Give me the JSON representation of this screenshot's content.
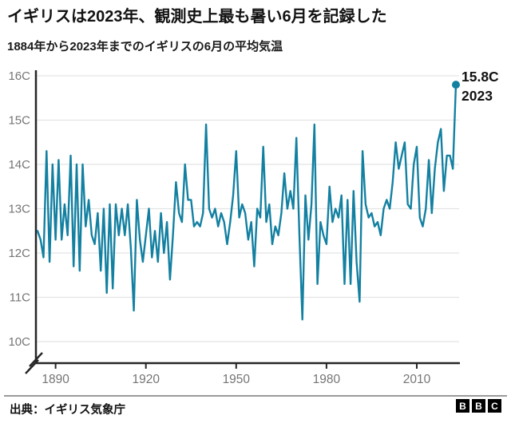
{
  "header": {
    "title": "イギリスは2023年、観測史上最も暑い6月を記録した",
    "subtitle": "1884年から2023年までのイギリスの6月の平均気温"
  },
  "chart_data": {
    "type": "line",
    "title": "イギリスは2023年、観測史上最も暑い6月を記録した",
    "subtitle": "1884年から2023年までのイギリスの6月の平均気温",
    "unit": "C",
    "grid": true,
    "axis_break": true,
    "ylim": [
      10,
      16
    ],
    "xlim": [
      1884,
      2023
    ],
    "ytick_values": [
      16,
      15,
      14,
      13,
      12,
      11,
      10
    ],
    "ytick_labels": [
      "16C",
      "15C",
      "14C",
      "13C",
      "12C",
      "11C",
      "10C"
    ],
    "xtick_values": [
      1890,
      1920,
      1950,
      1980,
      2010
    ],
    "xtick_labels": [
      "1890",
      "1920",
      "1950",
      "1980",
      "2010"
    ],
    "line_color": "#1380A1",
    "years": [
      1884,
      1885,
      1886,
      1887,
      1888,
      1889,
      1890,
      1891,
      1892,
      1893,
      1894,
      1895,
      1896,
      1897,
      1898,
      1899,
      1900,
      1901,
      1902,
      1903,
      1904,
      1905,
      1906,
      1907,
      1908,
      1909,
      1910,
      1911,
      1912,
      1913,
      1914,
      1915,
      1916,
      1917,
      1918,
      1919,
      1920,
      1921,
      1922,
      1923,
      1924,
      1925,
      1926,
      1927,
      1928,
      1929,
      1930,
      1931,
      1932,
      1933,
      1934,
      1935,
      1936,
      1937,
      1938,
      1939,
      1940,
      1941,
      1942,
      1943,
      1944,
      1945,
      1946,
      1947,
      1948,
      1949,
      1950,
      1951,
      1952,
      1953,
      1954,
      1955,
      1956,
      1957,
      1958,
      1959,
      1960,
      1961,
      1962,
      1963,
      1964,
      1965,
      1966,
      1967,
      1968,
      1969,
      1970,
      1971,
      1972,
      1973,
      1974,
      1975,
      1976,
      1977,
      1978,
      1979,
      1980,
      1981,
      1982,
      1983,
      1984,
      1985,
      1986,
      1987,
      1988,
      1989,
      1990,
      1991,
      1992,
      1993,
      1994,
      1995,
      1996,
      1997,
      1998,
      1999,
      2000,
      2001,
      2002,
      2003,
      2004,
      2005,
      2006,
      2007,
      2008,
      2009,
      2010,
      2011,
      2012,
      2013,
      2014,
      2015,
      2016,
      2017,
      2018,
      2019,
      2020,
      2021,
      2022,
      2023
    ],
    "values": [
      12.5,
      12.3,
      11.9,
      14.3,
      11.8,
      14.0,
      12.3,
      14.1,
      12.3,
      13.1,
      12.4,
      14.2,
      11.7,
      14.0,
      11.6,
      14.0,
      12.6,
      13.2,
      12.4,
      12.2,
      12.9,
      11.6,
      13.0,
      11.1,
      13.1,
      11.2,
      13.1,
      12.4,
      13.0,
      12.4,
      13.1,
      12.1,
      10.7,
      13.2,
      12.3,
      11.8,
      12.4,
      13.0,
      11.9,
      12.5,
      11.8,
      12.9,
      12.0,
      12.7,
      11.4,
      12.4,
      13.6,
      12.9,
      12.7,
      14.0,
      13.2,
      13.2,
      12.6,
      12.7,
      12.6,
      12.9,
      14.9,
      13.0,
      12.8,
      13.0,
      12.6,
      12.9,
      12.7,
      12.2,
      12.7,
      13.3,
      14.3,
      12.8,
      13.1,
      12.9,
      12.3,
      12.7,
      11.7,
      13.0,
      12.8,
      14.4,
      12.7,
      13.1,
      12.2,
      12.6,
      12.4,
      12.9,
      13.8,
      13.0,
      13.4,
      13.0,
      14.6,
      12.4,
      10.5,
      13.3,
      12.3,
      13.1,
      14.9,
      11.3,
      12.7,
      12.4,
      12.2,
      13.5,
      12.7,
      13.0,
      12.8,
      13.3,
      11.3,
      13.2,
      11.3,
      13.4,
      11.8,
      10.9,
      14.3,
      13.1,
      12.8,
      12.9,
      12.6,
      12.7,
      12.4,
      13.0,
      13.2,
      13.0,
      13.6,
      14.5,
      13.9,
      14.2,
      14.5,
      13.1,
      13.0,
      14.0,
      14.4,
      12.8,
      12.6,
      13.0,
      14.1,
      12.9,
      13.9,
      14.5,
      14.8,
      13.4,
      14.2,
      14.2,
      13.9,
      15.8
    ],
    "annotation": {
      "year": 2023,
      "value": 15.8,
      "temp_label": "15.8C",
      "year_label": "2023"
    },
    "legend": "none"
  },
  "footer": {
    "source": "出典：イギリス気象庁",
    "logo_letters": [
      "B",
      "B",
      "C"
    ]
  },
  "colors": {
    "accent": "#1380A1",
    "axis": "#262626",
    "grid": "#e4e4e4",
    "tick_label": "#757575",
    "text": "#121212"
  }
}
